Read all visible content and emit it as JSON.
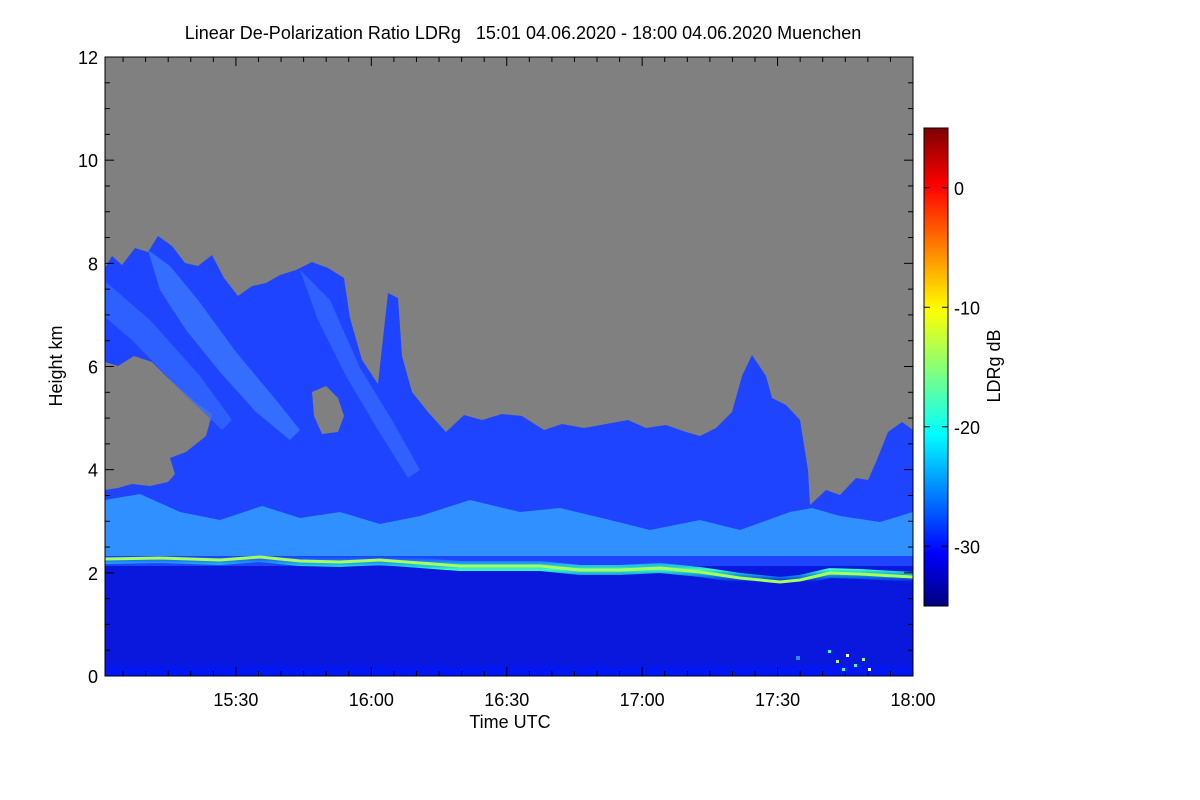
{
  "chart_data": {
    "type": "heatmap",
    "title": "Linear De-Polarization Ratio LDRg   15:01 04.06.2020 - 18:00 04.06.2020 Muenchen",
    "xlabel": "Time UTC",
    "ylabel": "Height km",
    "x_range": [
      "15:01",
      "18:00"
    ],
    "x_ticks": [
      "15:30",
      "16:00",
      "16:30",
      "17:00",
      "17:30",
      "18:00"
    ],
    "ylim": [
      0,
      12
    ],
    "y_ticks": [
      "0",
      "2",
      "4",
      "6",
      "8",
      "10",
      "12"
    ],
    "colorbar": {
      "label": "LDRg dB",
      "range": [
        -35,
        5
      ],
      "ticks": [
        "0",
        "-10",
        "-20",
        "-30"
      ],
      "colormap": "jet"
    },
    "no_data_color": "#808080",
    "features": {
      "aerosol_layer_top_km": 2.3,
      "cloud_top_max_km": 8.5,
      "cloud_base_km": 3.5,
      "depolarization_below_layer_db": -33,
      "depolarization_layer_top_db": -15,
      "depolarization_cloud_db": -28
    }
  }
}
